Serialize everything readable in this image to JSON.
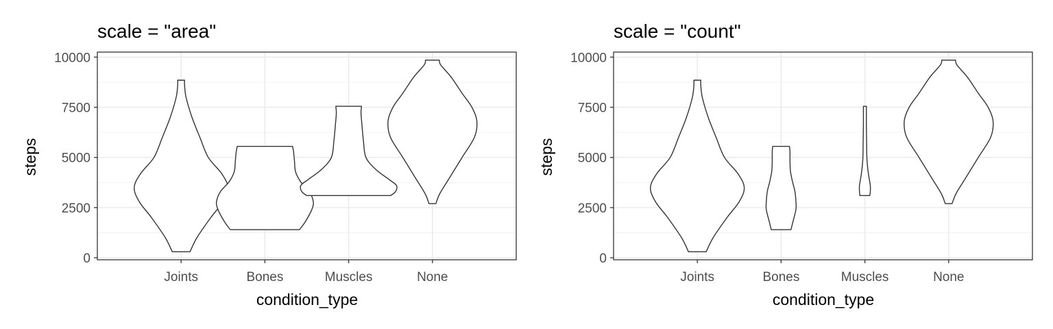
{
  "chart_data": [
    {
      "type": "violin",
      "title": "scale = \"area\"",
      "xlabel": "condition_type",
      "ylabel": "steps",
      "categories": [
        "Joints",
        "Bones",
        "Muscles",
        "None"
      ],
      "ylim": [
        -100,
        10250
      ],
      "yticks": [
        0,
        2500,
        5000,
        7500,
        10000
      ],
      "grid": true,
      "scale": "area",
      "violins": [
        {
          "category": "Joints",
          "min": 300,
          "max": 8850,
          "profile": [
            [
              300,
              0.18
            ],
            [
              1000,
              0.32
            ],
            [
              2000,
              0.6
            ],
            [
              2800,
              0.85
            ],
            [
              3500,
              0.95
            ],
            [
              4200,
              0.82
            ],
            [
              5000,
              0.55
            ],
            [
              6000,
              0.38
            ],
            [
              7000,
              0.22
            ],
            [
              8000,
              0.1
            ],
            [
              8600,
              0.07
            ],
            [
              8850,
              0.07
            ]
          ]
        },
        {
          "category": "Bones",
          "min": 1400,
          "max": 5550,
          "profile": [
            [
              1400,
              0.7
            ],
            [
              1800,
              0.82
            ],
            [
              2400,
              0.95
            ],
            [
              2800,
              0.98
            ],
            [
              3300,
              0.9
            ],
            [
              3800,
              0.72
            ],
            [
              4300,
              0.62
            ],
            [
              4800,
              0.6
            ],
            [
              5300,
              0.58
            ],
            [
              5550,
              0.56
            ]
          ]
        },
        {
          "category": "Muscles",
          "min": 3100,
          "max": 7550,
          "profile": [
            [
              3100,
              0.85
            ],
            [
              3300,
              0.95
            ],
            [
              3600,
              0.97
            ],
            [
              3900,
              0.82
            ],
            [
              4400,
              0.55
            ],
            [
              5000,
              0.35
            ],
            [
              5800,
              0.3
            ],
            [
              6600,
              0.27
            ],
            [
              7200,
              0.25
            ],
            [
              7550,
              0.26
            ]
          ]
        },
        {
          "category": "None",
          "min": 2700,
          "max": 9850,
          "profile": [
            [
              2700,
              0.07
            ],
            [
              3200,
              0.15
            ],
            [
              4000,
              0.35
            ],
            [
              5000,
              0.6
            ],
            [
              6000,
              0.85
            ],
            [
              6800,
              0.9
            ],
            [
              7500,
              0.8
            ],
            [
              8200,
              0.6
            ],
            [
              9000,
              0.38
            ],
            [
              9600,
              0.17
            ],
            [
              9850,
              0.14
            ]
          ]
        }
      ]
    },
    {
      "type": "violin",
      "title": "scale = \"count\"",
      "xlabel": "condition_type",
      "ylabel": "steps",
      "categories": [
        "Joints",
        "Bones",
        "Muscles",
        "None"
      ],
      "ylim": [
        -100,
        10250
      ],
      "yticks": [
        0,
        2500,
        5000,
        7500,
        10000
      ],
      "grid": true,
      "scale": "count",
      "violins": [
        {
          "category": "Joints",
          "min": 300,
          "max": 8850,
          "profile": [
            [
              300,
              0.18
            ],
            [
              1000,
              0.32
            ],
            [
              2000,
              0.6
            ],
            [
              2800,
              0.85
            ],
            [
              3500,
              0.95
            ],
            [
              4200,
              0.82
            ],
            [
              5000,
              0.55
            ],
            [
              6000,
              0.38
            ],
            [
              7000,
              0.22
            ],
            [
              8000,
              0.1
            ],
            [
              8600,
              0.07
            ],
            [
              8850,
              0.07
            ]
          ]
        },
        {
          "category": "Bones",
          "min": 1400,
          "max": 5550,
          "profile": [
            [
              1400,
              0.2
            ],
            [
              1800,
              0.24
            ],
            [
              2400,
              0.3
            ],
            [
              2800,
              0.3
            ],
            [
              3300,
              0.28
            ],
            [
              3800,
              0.23
            ],
            [
              4300,
              0.19
            ],
            [
              4800,
              0.18
            ],
            [
              5300,
              0.18
            ],
            [
              5550,
              0.17
            ]
          ]
        },
        {
          "category": "Muscles",
          "min": 3100,
          "max": 7550,
          "profile": [
            [
              3100,
              0.1
            ],
            [
              3300,
              0.11
            ],
            [
              3600,
              0.11
            ],
            [
              3900,
              0.09
            ],
            [
              4400,
              0.06
            ],
            [
              5000,
              0.04
            ],
            [
              5800,
              0.035
            ],
            [
              6600,
              0.03
            ],
            [
              7200,
              0.03
            ],
            [
              7550,
              0.03
            ]
          ]
        },
        {
          "category": "None",
          "min": 2700,
          "max": 9850,
          "profile": [
            [
              2700,
              0.07
            ],
            [
              3200,
              0.15
            ],
            [
              4000,
              0.35
            ],
            [
              5000,
              0.6
            ],
            [
              6000,
              0.85
            ],
            [
              6800,
              0.9
            ],
            [
              7500,
              0.8
            ],
            [
              8200,
              0.6
            ],
            [
              9000,
              0.38
            ],
            [
              9600,
              0.17
            ],
            [
              9850,
              0.14
            ]
          ]
        }
      ]
    }
  ]
}
